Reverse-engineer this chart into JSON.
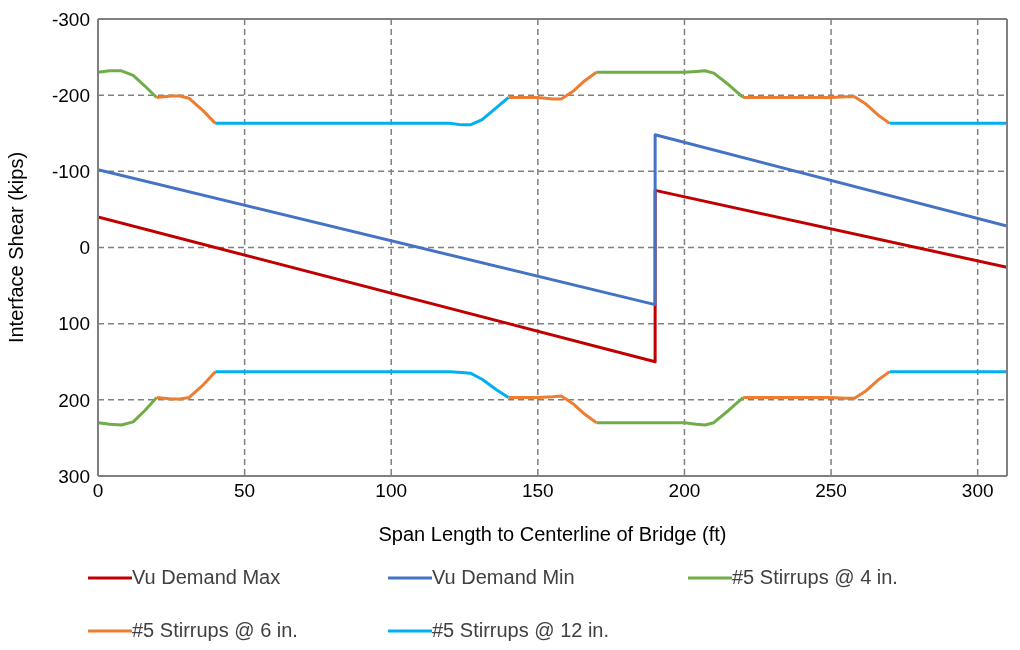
{
  "chart_data": {
    "type": "line",
    "xlabel": "Span Length to Centerline of Bridge (ft)",
    "ylabel": "Interface  Shear (kips)",
    "xlim": [
      0,
      310
    ],
    "xticks": [
      0,
      50,
      100,
      150,
      200,
      250,
      300
    ],
    "ylim": [
      300,
      -300
    ],
    "yticks": [
      -300,
      -200,
      -100,
      0,
      100,
      200,
      300
    ],
    "grid": true,
    "legend": "bottom",
    "marker": "none",
    "line_style": "solid",
    "series": [
      {
        "name": "Vu Demand Max",
        "color": "#c00000",
        "x": [
          0,
          190,
          190,
          310
        ],
        "values": [
          -40,
          150,
          -75,
          26
        ]
      },
      {
        "name": "Vu Demand Min",
        "color": "#4472c4",
        "x": [
          0,
          190,
          190,
          310
        ],
        "values": [
          -102,
          75,
          -148,
          -28
        ]
      },
      {
        "name": "#5 Stirrups @ 4 in.",
        "color": "#70ad47",
        "x": [
          0,
          4,
          8,
          12,
          16,
          20,
          null,
          170,
          200,
          204,
          207,
          210,
          215,
          220
        ],
        "values": [
          -230,
          -232,
          -232,
          -226,
          -212,
          -197,
          null,
          -230,
          -230,
          -231,
          -232,
          -229,
          -214,
          -197
        ]
      },
      {
        "name": "#5 Stirrups @ 6 in.",
        "color": "#ed7d31",
        "x": [
          20,
          25,
          28,
          31,
          36,
          40,
          null,
          140,
          150,
          155,
          158,
          162,
          166,
          170,
          null,
          220,
          250,
          255,
          258,
          262,
          266,
          270
        ],
        "values": [
          -197,
          -199,
          -199,
          -196,
          -179,
          -163,
          null,
          -197,
          -197,
          -195,
          -195,
          -205,
          -219,
          -230,
          null,
          -197,
          -197,
          -198,
          -198,
          -188,
          -174,
          -163
        ]
      },
      {
        "name": "#5 Stirrups @ 12 in.",
        "color": "#00b0f0",
        "x": [
          40,
          120,
          124,
          127,
          131,
          136,
          140,
          null,
          270,
          310
        ],
        "values": [
          -163,
          -163,
          -161,
          -161,
          -168,
          -184,
          -197,
          null,
          -163,
          -163
        ]
      },
      {
        "color": "#70ad47",
        "x": [
          0,
          4,
          8,
          12,
          16,
          20,
          null,
          170,
          200,
          204,
          207,
          210,
          215,
          220
        ],
        "values": [
          230,
          232,
          233,
          229,
          214,
          197,
          null,
          230,
          230,
          232,
          233,
          230,
          214,
          197
        ]
      },
      {
        "color": "#ed7d31",
        "x": [
          20,
          25,
          28,
          31,
          36,
          40,
          null,
          140,
          150,
          155,
          158,
          162,
          166,
          170,
          null,
          220,
          250,
          255,
          258,
          262,
          266,
          270
        ],
        "values": [
          197,
          199,
          199,
          197,
          180,
          163,
          null,
          197,
          197,
          196,
          195,
          205,
          219,
          230,
          null,
          197,
          197,
          198,
          198,
          188,
          174,
          163
        ]
      },
      {
        "color": "#00b0f0",
        "x": [
          40,
          120,
          124,
          127,
          131,
          136,
          140,
          null,
          270,
          310
        ],
        "values": [
          163,
          163,
          164,
          165,
          173,
          187,
          197,
          null,
          163,
          163
        ]
      }
    ]
  }
}
